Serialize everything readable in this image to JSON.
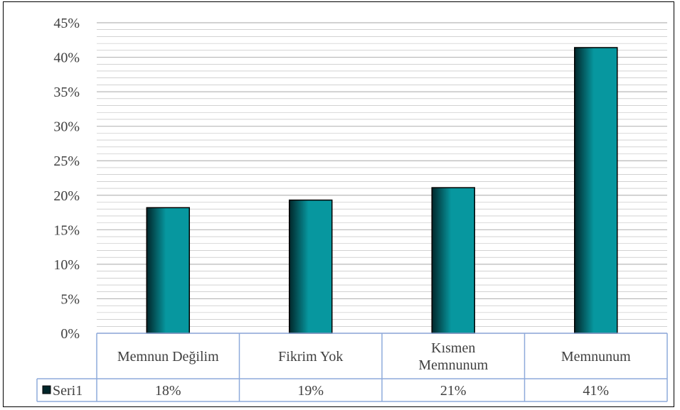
{
  "chart_data": {
    "type": "bar",
    "categories": [
      "Memnun Değilim",
      "Fikrim Yok",
      "Kısmen Memnunum",
      "Memnunum"
    ],
    "category_lines": [
      [
        "Memnun Değilim"
      ],
      [
        "Fikrim Yok"
      ],
      [
        "Kısmen",
        "Memnunum"
      ],
      [
        "Memnunum"
      ]
    ],
    "series": [
      {
        "name": "Seri1",
        "values": [
          18.2,
          19.3,
          21.1,
          41.4
        ],
        "labels": [
          "18%",
          "19%",
          "21%",
          "41%"
        ]
      }
    ],
    "ylim": [
      0,
      45
    ],
    "yticks": [
      0,
      5,
      10,
      15,
      20,
      25,
      30,
      35,
      40,
      45
    ],
    "ytick_format": "percent",
    "grid": true,
    "legend": "data-table",
    "colors": {
      "bar": "#07979f",
      "bar_dark": "#01262a",
      "grid": "#b8b8b8",
      "table_border": "#8eaadb"
    }
  }
}
